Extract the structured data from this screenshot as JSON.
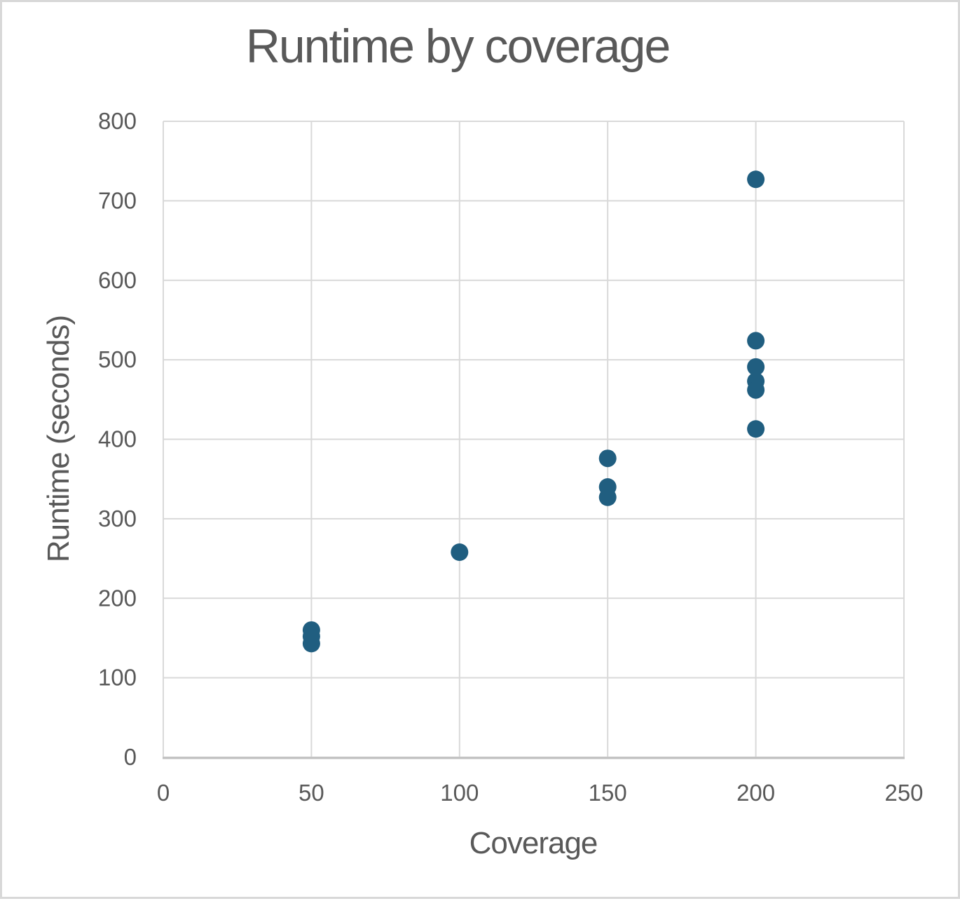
{
  "chart_data": {
    "type": "scatter",
    "title": "Runtime by coverage",
    "xlabel": "Coverage",
    "ylabel": "Runtime (seconds)",
    "xlim": [
      0,
      250
    ],
    "ylim": [
      0,
      800
    ],
    "x_ticks": [
      0,
      50,
      100,
      150,
      200,
      250
    ],
    "y_ticks": [
      0,
      100,
      200,
      300,
      400,
      500,
      600,
      700,
      800
    ],
    "grid": true,
    "legend": "none",
    "marker_color": "#205E80",
    "gridline_color": "#D9D9D9",
    "axis_line_color": "#BFBFBF",
    "text_color": "#595959",
    "points": [
      {
        "x": 50,
        "y": 160
      },
      {
        "x": 50,
        "y": 152
      },
      {
        "x": 50,
        "y": 143
      },
      {
        "x": 100,
        "y": 258
      },
      {
        "x": 150,
        "y": 376
      },
      {
        "x": 150,
        "y": 340
      },
      {
        "x": 150,
        "y": 327
      },
      {
        "x": 200,
        "y": 727
      },
      {
        "x": 200,
        "y": 524
      },
      {
        "x": 200,
        "y": 491
      },
      {
        "x": 200,
        "y": 473
      },
      {
        "x": 200,
        "y": 462
      },
      {
        "x": 200,
        "y": 413
      }
    ]
  }
}
